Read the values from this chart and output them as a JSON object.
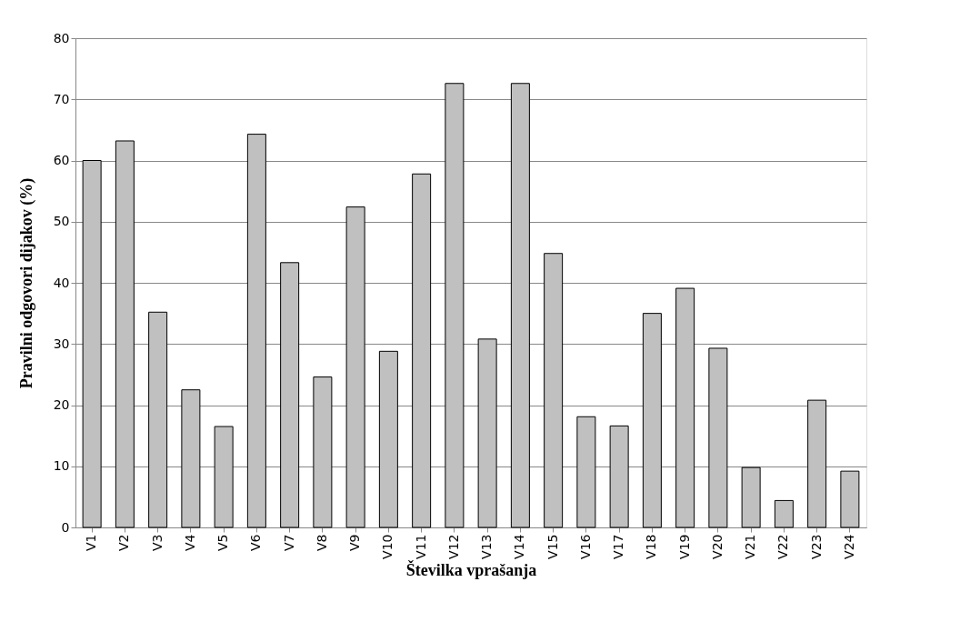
{
  "chart_data": {
    "type": "bar",
    "xlabel": "Številka vprašanja",
    "ylabel": "Pravilni odgovori dijakov  (%)",
    "categories": [
      "V1",
      "V2",
      "V3",
      "V4",
      "V5",
      "V6",
      "V7",
      "V8",
      "V9",
      "V10",
      "V11",
      "V12",
      "V13",
      "V14",
      "V15",
      "V16",
      "V17",
      "V18",
      "V19",
      "V20",
      "V21",
      "V22",
      "V23",
      "V24"
    ],
    "values": [
      60,
      63.2,
      35.2,
      22.5,
      16.5,
      64.3,
      43.3,
      24.6,
      52.4,
      28.8,
      57.8,
      72.6,
      30.8,
      72.6,
      44.8,
      18.1,
      16.6,
      35,
      39.1,
      29.3,
      9.8,
      4.4,
      20.8,
      9.2
    ],
    "color": "#c0c0c0",
    "ylim": [
      0,
      80
    ],
    "yticks": [
      0,
      10,
      20,
      30,
      40,
      50,
      60,
      70,
      80
    ],
    "grid": "y"
  }
}
